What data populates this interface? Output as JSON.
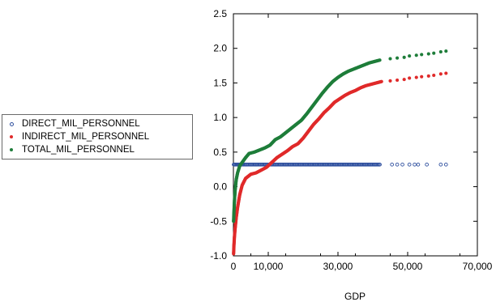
{
  "chart_data": {
    "type": "scatter",
    "title": "",
    "xlabel": "GDP",
    "ylabel": "",
    "xlim": [
      0,
      70000
    ],
    "ylim": [
      -1.0,
      2.5
    ],
    "x_ticks": [
      0,
      10000,
      30000,
      50000,
      70000
    ],
    "x_tick_labels": [
      "0",
      "10,000",
      "30,000",
      "50,000",
      "70,000"
    ],
    "y_ticks": [
      -1.0,
      -0.5,
      0.0,
      0.5,
      1.0,
      1.5,
      2.0,
      2.5
    ],
    "y_tick_labels": [
      "-1.0",
      "-0.5",
      "0.0",
      "0.5",
      "1.0",
      "1.5",
      "2.0",
      "2.5"
    ],
    "grid": false,
    "legend_position": "left",
    "series": [
      {
        "name": "DIRECT_MIL_PERSONNEL",
        "color": "#2e4f9e",
        "marker": "open-circle",
        "points": [
          [
            100,
            0.32
          ],
          [
            500,
            0.32
          ],
          [
            1000,
            0.32
          ],
          [
            2000,
            0.32
          ],
          [
            3000,
            0.32
          ],
          [
            5000,
            0.32
          ],
          [
            7500,
            0.32
          ],
          [
            10000,
            0.32
          ],
          [
            12500,
            0.32
          ],
          [
            15000,
            0.32
          ],
          [
            17500,
            0.32
          ],
          [
            20000,
            0.32
          ],
          [
            22500,
            0.32
          ],
          [
            25000,
            0.32
          ],
          [
            27500,
            0.32
          ],
          [
            30000,
            0.32
          ],
          [
            32500,
            0.32
          ],
          [
            35000,
            0.32
          ],
          [
            37500,
            0.32
          ],
          [
            40000,
            0.32
          ],
          [
            42000,
            0.32
          ],
          [
            45500,
            0.32
          ],
          [
            47000,
            0.32
          ],
          [
            48500,
            0.32
          ],
          [
            50500,
            0.32
          ],
          [
            52000,
            0.32
          ],
          [
            53000,
            0.32
          ],
          [
            55500,
            0.32
          ],
          [
            59500,
            0.32
          ],
          [
            61000,
            0.32
          ]
        ]
      },
      {
        "name": "INDIRECT_MIL_PERSONNEL",
        "color": "#e02a2a",
        "marker": "filled-circle",
        "points": [
          [
            50,
            -0.97
          ],
          [
            150,
            -0.85
          ],
          [
            300,
            -0.72
          ],
          [
            500,
            -0.6
          ],
          [
            800,
            -0.45
          ],
          [
            1200,
            -0.3
          ],
          [
            1800,
            -0.12
          ],
          [
            2500,
            0.02
          ],
          [
            3500,
            0.12
          ],
          [
            5000,
            0.18
          ],
          [
            6500,
            0.2
          ],
          [
            8000,
            0.24
          ],
          [
            9500,
            0.28
          ],
          [
            11000,
            0.35
          ],
          [
            12500,
            0.42
          ],
          [
            14000,
            0.47
          ],
          [
            15500,
            0.52
          ],
          [
            17000,
            0.58
          ],
          [
            18500,
            0.62
          ],
          [
            20000,
            0.7
          ],
          [
            21500,
            0.8
          ],
          [
            23000,
            0.9
          ],
          [
            24500,
            0.98
          ],
          [
            26000,
            1.07
          ],
          [
            27500,
            1.14
          ],
          [
            29000,
            1.22
          ],
          [
            30500,
            1.27
          ],
          [
            32000,
            1.32
          ],
          [
            33500,
            1.36
          ],
          [
            35000,
            1.39
          ],
          [
            36500,
            1.43
          ],
          [
            38000,
            1.46
          ],
          [
            39500,
            1.48
          ],
          [
            41000,
            1.5
          ],
          [
            42500,
            1.52
          ],
          [
            45000,
            1.53
          ],
          [
            47000,
            1.54
          ],
          [
            49000,
            1.55
          ],
          [
            50500,
            1.57
          ],
          [
            52500,
            1.58
          ],
          [
            54000,
            1.59
          ],
          [
            56000,
            1.6
          ],
          [
            57500,
            1.61
          ],
          [
            59500,
            1.63
          ],
          [
            61000,
            1.64
          ]
        ]
      },
      {
        "name": "TOTAL_MIL_PERSONNEL",
        "color": "#1e7d3a",
        "marker": "filled-circle",
        "points": [
          [
            50,
            -0.5
          ],
          [
            150,
            -0.38
          ],
          [
            300,
            -0.2
          ],
          [
            500,
            -0.05
          ],
          [
            800,
            0.1
          ],
          [
            1200,
            0.2
          ],
          [
            1800,
            0.3
          ],
          [
            2500,
            0.35
          ],
          [
            3500,
            0.42
          ],
          [
            4500,
            0.48
          ],
          [
            6000,
            0.5
          ],
          [
            7500,
            0.53
          ],
          [
            9000,
            0.56
          ],
          [
            10500,
            0.6
          ],
          [
            12000,
            0.68
          ],
          [
            13500,
            0.72
          ],
          [
            15000,
            0.78
          ],
          [
            16500,
            0.84
          ],
          [
            18000,
            0.9
          ],
          [
            19500,
            0.96
          ],
          [
            21000,
            1.05
          ],
          [
            22500,
            1.15
          ],
          [
            24000,
            1.25
          ],
          [
            25500,
            1.35
          ],
          [
            27000,
            1.44
          ],
          [
            28500,
            1.52
          ],
          [
            30000,
            1.58
          ],
          [
            31500,
            1.63
          ],
          [
            33000,
            1.67
          ],
          [
            34500,
            1.7
          ],
          [
            36000,
            1.73
          ],
          [
            37500,
            1.76
          ],
          [
            39000,
            1.79
          ],
          [
            40500,
            1.81
          ],
          [
            42000,
            1.83
          ],
          [
            45000,
            1.85
          ],
          [
            47000,
            1.86
          ],
          [
            49000,
            1.87
          ],
          [
            50500,
            1.89
          ],
          [
            52500,
            1.9
          ],
          [
            54000,
            1.91
          ],
          [
            56000,
            1.92
          ],
          [
            57500,
            1.93
          ],
          [
            59500,
            1.95
          ],
          [
            61000,
            1.96
          ]
        ]
      }
    ]
  }
}
